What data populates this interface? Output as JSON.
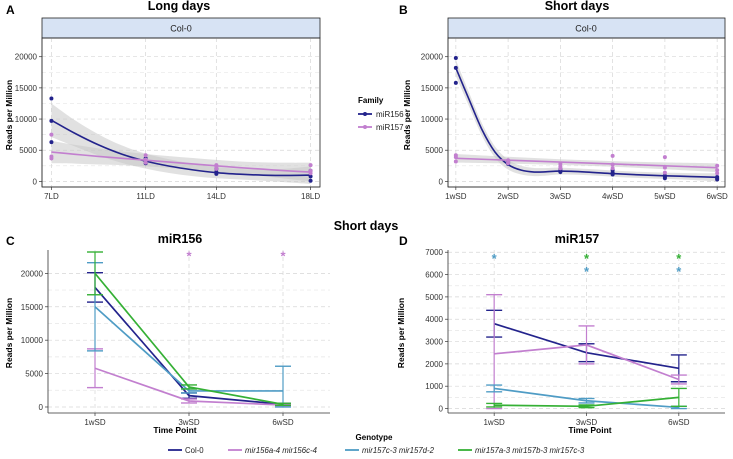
{
  "colors": {
    "mir156": "#23238c",
    "mir157": "#c27fcf",
    "col0": "#23238c",
    "mir156a4": "#c27fcf",
    "mir157c3": "#4f9cc5",
    "mir157a3": "#35b035",
    "ribbon": "#c8c8c8",
    "strip": "#d7e3f4"
  },
  "header": {
    "short_days_title": "Short days"
  },
  "family_legend": {
    "title": "Family",
    "items": [
      {
        "label": "miR156",
        "color": "#23238c"
      },
      {
        "label": "miR157",
        "color": "#c27fcf"
      }
    ]
  },
  "genotype_legend": {
    "title": "Genotype",
    "items": [
      {
        "label": "Col-0",
        "color": "#23238c",
        "italic": false
      },
      {
        "label": "mir156a-4 mir156c-4",
        "color": "#c27fcf",
        "italic": true
      },
      {
        "label": "mir157c-3 mir157d-2",
        "color": "#4f9cc5",
        "italic": true
      },
      {
        "label": "mir157a-3 mir157b-3 mir157c-3",
        "color": "#35b035",
        "italic": true
      }
    ]
  },
  "chart_data": [
    {
      "panel": "A",
      "type": "scatter",
      "title": "Long days",
      "strip": "Col-0",
      "ylabel": "Reads per Million",
      "xlabel": "",
      "ylim": [
        -900,
        23000
      ],
      "yticks": [
        0,
        5000,
        10000,
        15000,
        20000
      ],
      "categories": [
        "7LD",
        "11LD",
        "14LD",
        "18LD"
      ],
      "x_positions": [
        7,
        11,
        14,
        18
      ],
      "xlim": [
        6.6,
        18.4
      ],
      "series": [
        {
          "name": "miR156",
          "points": [
            [
              7,
              13300
            ],
            [
              7,
              9700
            ],
            [
              7,
              6300
            ],
            [
              11,
              3700
            ],
            [
              11,
              3300
            ],
            [
              11,
              2900
            ],
            [
              14,
              2000
            ],
            [
              14,
              1500
            ],
            [
              14,
              1200
            ],
            [
              18,
              1700
            ],
            [
              18,
              800
            ],
            [
              18,
              100
            ]
          ],
          "fit": [
            [
              7,
              9800
            ],
            [
              8,
              7700
            ],
            [
              9,
              5850
            ],
            [
              10,
              4350
            ],
            [
              11,
              3250
            ],
            [
              12,
              2450
            ],
            [
              13,
              1850
            ],
            [
              14,
              1400
            ],
            [
              15,
              1150
            ],
            [
              16,
              1000
            ],
            [
              17,
              950
            ],
            [
              18,
              1000
            ]
          ],
          "band_halfwidth": [
            2700,
            2100,
            1700,
            1400,
            1200,
            1100,
            1000,
            900,
            850,
            900,
            1100,
            1400
          ]
        },
        {
          "name": "miR157",
          "points": [
            [
              7,
              7500
            ],
            [
              7,
              4000
            ],
            [
              7,
              3700
            ],
            [
              11,
              4200
            ],
            [
              11,
              3500
            ],
            [
              11,
              3000
            ],
            [
              14,
              2600
            ],
            [
              14,
              2300
            ],
            [
              14,
              2000
            ],
            [
              18,
              2600
            ],
            [
              18,
              1700
            ],
            [
              18,
              1300
            ]
          ],
          "fit": [
            [
              7,
              4700
            ],
            [
              8,
              4350
            ],
            [
              9,
              4000
            ],
            [
              10,
              3700
            ],
            [
              11,
              3400
            ],
            [
              12,
              3100
            ],
            [
              13,
              2800
            ],
            [
              14,
              2500
            ],
            [
              15,
              2200
            ],
            [
              16,
              1950
            ],
            [
              17,
              1700
            ],
            [
              18,
              1500
            ]
          ],
          "band_halfwidth": [
            1800,
            1500,
            1300,
            1100,
            1000,
            950,
            950,
            950,
            1000,
            1100,
            1300,
            1500
          ]
        }
      ]
    },
    {
      "panel": "B",
      "type": "scatter",
      "title": "Short days",
      "strip": "Col-0",
      "ylabel": "Reads per Million",
      "xlabel": "",
      "ylim": [
        -900,
        23000
      ],
      "yticks": [
        0,
        5000,
        10000,
        15000,
        20000
      ],
      "categories": [
        "1wSD",
        "2wSD",
        "3wSD",
        "4wSD",
        "5wSD",
        "6wSD"
      ],
      "x_positions": [
        1,
        2,
        3,
        4,
        5,
        6
      ],
      "xlim": [
        0.85,
        6.15
      ],
      "series": [
        {
          "name": "miR156",
          "points": [
            [
              1,
              19800
            ],
            [
              1,
              18200
            ],
            [
              1,
              15800
            ],
            [
              2,
              3200
            ],
            [
              2,
              3000
            ],
            [
              2,
              2800
            ],
            [
              3,
              2000
            ],
            [
              3,
              1700
            ],
            [
              3,
              1500
            ],
            [
              4,
              1800
            ],
            [
              4,
              1400
            ],
            [
              4,
              1100
            ],
            [
              5,
              900
            ],
            [
              5,
              700
            ],
            [
              5,
              500
            ],
            [
              6,
              700
            ],
            [
              6,
              500
            ],
            [
              6,
              300
            ]
          ],
          "fit": [
            [
              1,
              18200
            ],
            [
              1.25,
              13200
            ],
            [
              1.5,
              8300
            ],
            [
              1.75,
              4700
            ],
            [
              2,
              2700
            ],
            [
              2.25,
              1800
            ],
            [
              2.5,
              1500
            ],
            [
              2.75,
              1550
            ],
            [
              3,
              1650
            ],
            [
              3.5,
              1500
            ],
            [
              4,
              1250
            ],
            [
              4.5,
              1050
            ],
            [
              5,
              900
            ],
            [
              5.5,
              780
            ],
            [
              6,
              650
            ]
          ],
          "band_halfwidth": [
            1300,
            1100,
            1000,
            900,
            800,
            700,
            650,
            600,
            550,
            500,
            500,
            500,
            500,
            550,
            650
          ]
        },
        {
          "name": "miR157",
          "points": [
            [
              1,
              4200
            ],
            [
              1,
              3900
            ],
            [
              1,
              3200
            ],
            [
              2,
              3400
            ],
            [
              2,
              3100
            ],
            [
              2,
              2900
            ],
            [
              3,
              2800
            ],
            [
              3,
              2400
            ],
            [
              3,
              2100
            ],
            [
              4,
              4100
            ],
            [
              4,
              2700
            ],
            [
              4,
              2100
            ],
            [
              5,
              3900
            ],
            [
              5,
              2200
            ],
            [
              5,
              1400
            ],
            [
              6,
              2500
            ],
            [
              6,
              1800
            ],
            [
              6,
              1300
            ]
          ],
          "fit": [
            [
              1,
              3700
            ],
            [
              2,
              3400
            ],
            [
              3,
              3100
            ],
            [
              4,
              2800
            ],
            [
              5,
              2500
            ],
            [
              6,
              2200
            ]
          ],
          "band_halfwidth": [
            700,
            550,
            450,
            450,
            550,
            700
          ]
        }
      ]
    },
    {
      "panel": "C",
      "type": "line",
      "title": "miR156",
      "ylabel": "Reads per Million",
      "xlabel": "Time Point",
      "ylim": [
        -900,
        23500
      ],
      "yticks": [
        0,
        5000,
        10000,
        15000,
        20000
      ],
      "categories": [
        "1wSD",
        "3wSD",
        "6wSD"
      ],
      "significance": [
        {
          "category": "3wSD",
          "y": 22500,
          "marks": [
            {
              "text": "*",
              "color": "#c27fcf"
            }
          ]
        },
        {
          "category": "6wSD",
          "y": 22500,
          "marks": [
            {
              "text": "*",
              "color": "#c27fcf"
            }
          ]
        }
      ],
      "series": [
        {
          "name": "Col-0",
          "values": [
            17900,
            1700,
            400
          ],
          "err": [
            2200,
            400,
            150
          ]
        },
        {
          "name": "mir156a-4 mir156c-4",
          "values": [
            5800,
            900,
            300
          ],
          "err": [
            2900,
            300,
            120
          ]
        },
        {
          "name": "mir157c-3 mir157d-2",
          "values": [
            15000,
            2400,
            2400
          ],
          "err": [
            6600,
            300,
            3700
          ]
        },
        {
          "name": "mir157a-3 mir157b-3 mir157c-3",
          "values": [
            20000,
            3000,
            400
          ],
          "err": [
            3200,
            300,
            150
          ]
        }
      ]
    },
    {
      "panel": "D",
      "type": "line",
      "title": "miR157",
      "ylabel": "Reads per Million",
      "xlabel": "Time Point",
      "ylim": [
        -200,
        7100
      ],
      "yticks": [
        0,
        1000,
        2000,
        3000,
        4000,
        5000,
        6000,
        7000
      ],
      "categories": [
        "1wSD",
        "3wSD",
        "6wSD"
      ],
      "significance": [
        {
          "category": "1wSD",
          "y": 6700,
          "marks": [
            {
              "text": "*",
              "color": "#4f9cc5"
            }
          ]
        },
        {
          "category": "3wSD",
          "y": 6700,
          "marks": [
            {
              "text": "*",
              "color": "#35b035"
            },
            {
              "text": "*",
              "color": "#4f9cc5"
            }
          ]
        },
        {
          "category": "6wSD",
          "y": 6700,
          "marks": [
            {
              "text": "*",
              "color": "#35b035"
            },
            {
              "text": "*",
              "color": "#4f9cc5"
            }
          ]
        }
      ],
      "series": [
        {
          "name": "Col-0",
          "values": [
            3800,
            2500,
            1800
          ],
          "err": [
            600,
            400,
            600
          ]
        },
        {
          "name": "mir156a-4 mir156c-4",
          "values": [
            2450,
            2850,
            1300
          ],
          "err": [
            2650,
            850,
            200
          ]
        },
        {
          "name": "mir157c-3 mir157d-2",
          "values": [
            900,
            350,
            50
          ],
          "err": [
            150,
            100,
            50
          ]
        },
        {
          "name": "mir157a-3 mir157b-3 mir157c-3",
          "values": [
            150,
            100,
            500
          ],
          "err": [
            80,
            60,
            400
          ]
        }
      ]
    }
  ]
}
